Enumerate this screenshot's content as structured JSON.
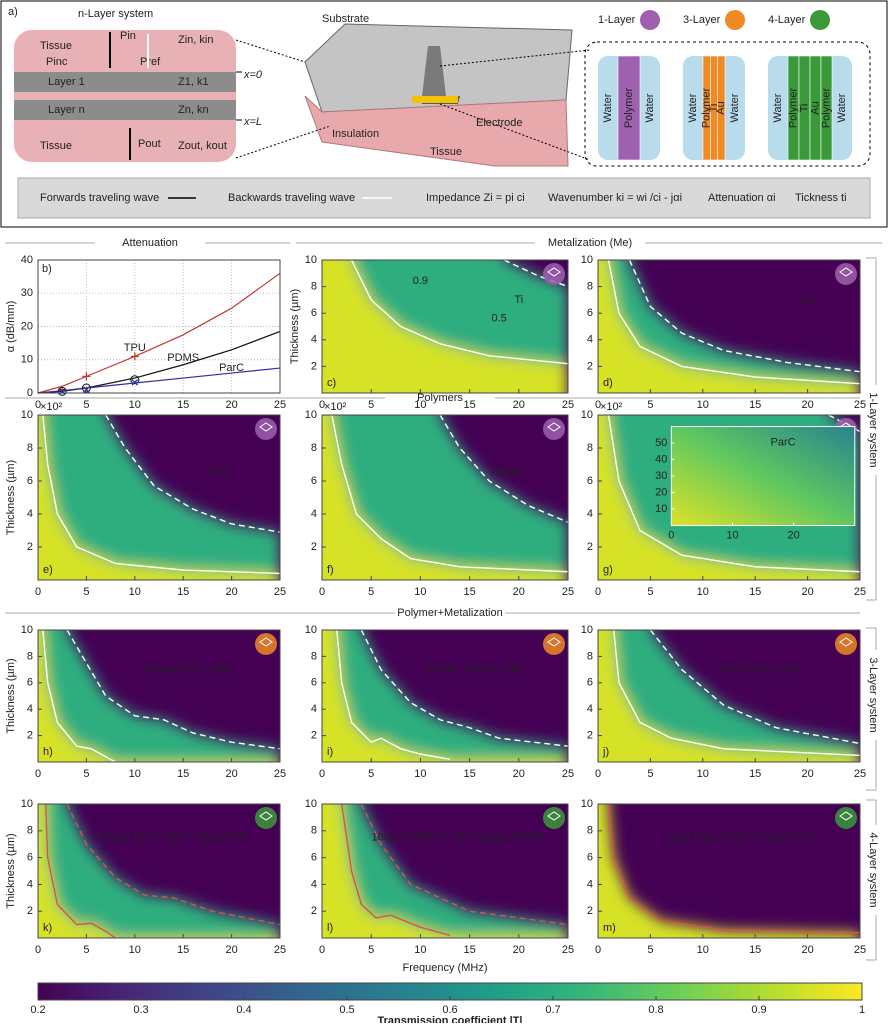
{
  "panel_a": {
    "label": "a)",
    "left": {
      "title": "n-Layer system",
      "tissue_top": "Tissue",
      "tissue_bottom": "Tissue",
      "layers": [
        "Layer 1",
        "Layer n"
      ],
      "symbols": [
        "Pin",
        "Pinc",
        "Pref",
        "Zin, kin",
        "Z1, k1",
        "Zn, kn",
        "Pout",
        "Zout, kout",
        "x=0",
        "x=L"
      ]
    },
    "center": {
      "labels": [
        "Substrate",
        "Insulation",
        "Electrode",
        "Tissue"
      ]
    },
    "right": {
      "headers": [
        "1-Layer",
        "3-Layer",
        "4-Layer"
      ],
      "colors": [
        "#a060b0",
        "#f08a24",
        "#3a9a3a"
      ],
      "stacks": [
        [
          "Water",
          "Polymer",
          "Water"
        ],
        [
          "Water",
          "Polymer",
          "Ti",
          "Au",
          "Water"
        ],
        [
          "Water",
          "Polymer",
          "Ti",
          "Au",
          "Polymer",
          "Water"
        ]
      ]
    },
    "legend": [
      "Forwards traveling wave",
      "Backwards traveling wave",
      "Impedance Zi = pi ci",
      "Wavenumber ki = wi /ci - jαi",
      "Attenuation αi",
      "Tickness ti"
    ]
  },
  "section_labels": [
    "Attenuation",
    "Metalization (Me)",
    "Polymers",
    "Polymer+Metalization",
    "1-Layer system",
    "3-Layer system",
    "4-Layer system"
  ],
  "chart_data": [
    {
      "type": "line",
      "label": "b)",
      "ylabel": "α (dB/mm)",
      "xlim": [
        0,
        25
      ],
      "ylim": [
        0,
        40
      ],
      "xticks": [
        0,
        5,
        10,
        15,
        20,
        25
      ],
      "yticks": [
        0,
        10,
        20,
        30,
        40
      ],
      "grid": true,
      "x": [
        0,
        2.5,
        5,
        10,
        15,
        20,
        25
      ],
      "series": [
        {
          "name": "TPU",
          "color": "#c0392b",
          "marker": "plus",
          "values": [
            0,
            2,
            5,
            11,
            17.5,
            25.5,
            36
          ],
          "measured": {
            "x": [
              2.5,
              5,
              10
            ],
            "values": [
              1,
              5,
              11
            ]
          }
        },
        {
          "name": "PDMS",
          "color": "#111111",
          "marker": "circle",
          "values": [
            0,
            0.5,
            1.5,
            4.5,
            8.5,
            13,
            18.5
          ],
          "measured": {
            "x": [
              2.5,
              5,
              10
            ],
            "values": [
              0.5,
              1.5,
              4
            ]
          }
        },
        {
          "name": "ParC",
          "color": "#2e2e9e",
          "marker": "cross",
          "values": [
            0,
            0.7,
            1.5,
            3,
            4.5,
            6,
            7.5
          ],
          "measured": {
            "x": [
              2.5,
              5,
              10
            ],
            "values": [
              0.5,
              1,
              3.2
            ]
          }
        }
      ]
    },
    {
      "type": "heatmap",
      "label": "c)",
      "ylabel": "Thickness (µm)",
      "text": "Ti",
      "annotations": [
        "0.9",
        "0.5"
      ],
      "icon_color": "#a060b0",
      "xlim": [
        0,
        25
      ],
      "ylim": [
        0,
        10
      ],
      "xticks": [
        0,
        5,
        10,
        15,
        20,
        25
      ],
      "yticks": [
        2,
        4,
        6,
        8,
        10
      ],
      "contours": [
        {
          "level": 0.5,
          "style": "dashed",
          "x": [
            18.5,
            22,
            25
          ],
          "y": [
            10,
            8.8,
            8
          ]
        },
        {
          "level": 0.9,
          "style": "solid",
          "x": [
            3,
            5,
            8,
            12,
            17,
            25
          ],
          "y": [
            10,
            7,
            5,
            3.7,
            2.8,
            2.2
          ]
        }
      ]
    },
    {
      "type": "heatmap",
      "label": "d)",
      "text": "Au",
      "icon_color": "#a060b0",
      "xlim": [
        0,
        25
      ],
      "ylim": [
        0,
        10
      ],
      "xticks": [
        0,
        5,
        10,
        15,
        20,
        25
      ],
      "yticks": [
        2,
        4,
        6,
        8,
        10
      ],
      "contours": [
        {
          "level": 0.5,
          "style": "dashed",
          "x": [
            3,
            5,
            8,
            12,
            18,
            25
          ],
          "y": [
            10,
            6.5,
            4.5,
            3.2,
            2.3,
            1.6
          ]
        },
        {
          "level": 0.9,
          "style": "solid",
          "x": [
            1,
            2,
            4,
            8,
            15,
            25
          ],
          "y": [
            10,
            6,
            3.5,
            2,
            1.2,
            0.7
          ]
        }
      ]
    },
    {
      "type": "heatmap",
      "label": "e)",
      "ylabel": "Thickness (µm)",
      "multiplier": "×10²",
      "text": "TPU",
      "icon_color": "#a060b0",
      "xlim": [
        0,
        25
      ],
      "ylim": [
        0,
        10
      ],
      "xticks": [
        0,
        5,
        10,
        15,
        20,
        25
      ],
      "yticks": [
        2,
        4,
        6,
        8,
        10
      ],
      "contours": [
        {
          "level": 0.5,
          "style": "dashed",
          "x": [
            7,
            9,
            12,
            16,
            20,
            25
          ],
          "y": [
            10,
            8,
            5.7,
            4.3,
            3.4,
            2.9
          ]
        },
        {
          "level": 0.9,
          "style": "solid",
          "x": [
            0.5,
            1,
            2,
            4,
            8,
            15,
            25
          ],
          "y": [
            10,
            7,
            4,
            2,
            1,
            0.6,
            0.4
          ]
        }
      ]
    },
    {
      "type": "heatmap",
      "label": "f)",
      "multiplier": "×10²",
      "text": "PDMS",
      "icon_color": "#a060b0",
      "xlim": [
        0,
        25
      ],
      "ylim": [
        0,
        10
      ],
      "xticks": [
        0,
        5,
        10,
        15,
        20,
        25
      ],
      "yticks": [
        2,
        4,
        6,
        8,
        10
      ],
      "contours": [
        {
          "level": 0.5,
          "style": "dashed",
          "x": [
            12,
            14,
            17,
            21,
            25
          ],
          "y": [
            10,
            8,
            6,
            4.5,
            3.5
          ]
        },
        {
          "level": 0.9,
          "style": "solid",
          "x": [
            1,
            2,
            3.5,
            6,
            9,
            14,
            25
          ],
          "y": [
            10,
            7,
            4,
            2.5,
            1.3,
            0.8,
            0.5
          ]
        }
      ]
    },
    {
      "type": "heatmap",
      "label": "g)",
      "multiplier": "×10²",
      "icon_color": "#a060b0",
      "xlim": [
        0,
        25
      ],
      "ylim": [
        0,
        10
      ],
      "xticks": [
        0,
        5,
        10,
        15,
        20,
        25
      ],
      "yticks": [
        2,
        4,
        6,
        8,
        10
      ],
      "contours": [
        {
          "level": 0.5,
          "style": "dashed",
          "x": [
            22,
            25
          ],
          "y": [
            10,
            9
          ]
        },
        {
          "level": 0.9,
          "style": "solid",
          "x": [
            1,
            2,
            4,
            8,
            15,
            25
          ],
          "y": [
            10,
            6,
            3,
            1.5,
            0.8,
            0.5
          ]
        }
      ],
      "inset": {
        "text": "ParC",
        "xlim": [
          0,
          30
        ],
        "ylim": [
          0,
          60
        ],
        "xticks": [
          0,
          10,
          20
        ],
        "yticks": [
          10,
          20,
          30,
          40,
          50
        ]
      }
    },
    {
      "type": "heatmap",
      "label": "h)",
      "ylabel": "Thickness (µm)",
      "text": "100µm TPU + Me",
      "icon_color": "#f08a24",
      "xlim": [
        0,
        25
      ],
      "ylim": [
        0,
        10
      ],
      "xticks": [
        0,
        5,
        10,
        15,
        20,
        25
      ],
      "yticks": [
        2,
        4,
        6,
        8,
        10
      ],
      "contours": [
        {
          "level": 0.5,
          "style": "dashed",
          "x": [
            3,
            5,
            7,
            10,
            13,
            16,
            20,
            25
          ],
          "y": [
            10,
            7.5,
            5,
            3.5,
            3.2,
            2.2,
            1.5,
            1
          ]
        },
        {
          "level": 0.9,
          "style": "solid",
          "x": [
            0.5,
            1,
            2,
            4,
            5.5,
            7,
            8
          ],
          "y": [
            10,
            6,
            3,
            1.2,
            1,
            0.4,
            0
          ]
        }
      ]
    },
    {
      "type": "heatmap",
      "label": "i)",
      "text": "100µm PDMS + Me",
      "icon_color": "#f08a24",
      "xlim": [
        0,
        25
      ],
      "ylim": [
        0,
        10
      ],
      "xticks": [
        0,
        5,
        10,
        15,
        20,
        25
      ],
      "yticks": [
        2,
        4,
        6,
        8,
        10
      ],
      "contours": [
        {
          "level": 0.5,
          "style": "dashed",
          "x": [
            4,
            6,
            9,
            12,
            15,
            18,
            25
          ],
          "y": [
            10,
            7,
            4.5,
            3.2,
            2.6,
            1.8,
            1.2
          ]
        },
        {
          "level": 0.9,
          "style": "solid",
          "x": [
            1.5,
            2,
            3,
            5,
            6,
            8,
            10,
            13
          ],
          "y": [
            10,
            6,
            3,
            1.5,
            1.8,
            1,
            0.6,
            0.2
          ]
        }
      ]
    },
    {
      "type": "heatmap",
      "label": "j)",
      "text": "5µm ParC + Me",
      "icon_color": "#f08a24",
      "xlim": [
        0,
        25
      ],
      "ylim": [
        0,
        10
      ],
      "xticks": [
        0,
        5,
        10,
        15,
        20,
        25
      ],
      "yticks": [
        2,
        4,
        6,
        8,
        10
      ],
      "contours": [
        {
          "level": 0.5,
          "style": "dashed",
          "x": [
            5,
            8,
            12,
            17,
            25
          ],
          "y": [
            10,
            7,
            4.3,
            2.6,
            1.4
          ]
        },
        {
          "level": 0.9,
          "style": "solid",
          "x": [
            1.5,
            2,
            4,
            7,
            12,
            25
          ],
          "y": [
            10,
            6,
            3,
            1.8,
            1,
            0.5
          ]
        }
      ]
    },
    {
      "type": "heatmap",
      "label": "k)",
      "ylabel": "Thickness (µm)",
      "text": "100µm TPU + Me + 25µm TPU",
      "icon_color": "#3a9a3a",
      "xlim": [
        0,
        25
      ],
      "ylim": [
        0,
        10
      ],
      "xticks": [
        0,
        5,
        10,
        15,
        20,
        25
      ],
      "yticks": [
        2,
        4,
        6,
        8,
        10
      ],
      "contours": [
        {
          "level": 0.5,
          "style": "dashed",
          "color": "#d9534f",
          "x": [
            3,
            5,
            8,
            11,
            14,
            18,
            25
          ],
          "y": [
            10,
            7,
            4.5,
            3.2,
            3,
            2,
            1
          ]
        },
        {
          "level": 0.9,
          "style": "solid",
          "color": "#d9534f",
          "x": [
            0.8,
            1,
            2,
            4,
            5.5,
            7,
            8
          ],
          "y": [
            10,
            6,
            2.5,
            1,
            1.1,
            0.5,
            0
          ]
        }
      ]
    },
    {
      "type": "heatmap",
      "label": "l)",
      "xlabel": "Frequency (MHz)",
      "text": "100µm PDMS + Me + 25µm PDMS",
      "icon_color": "#3a9a3a",
      "xlim": [
        0,
        25
      ],
      "ylim": [
        0,
        10
      ],
      "xticks": [
        0,
        5,
        10,
        15,
        20,
        25
      ],
      "yticks": [
        2,
        4,
        6,
        8,
        10
      ],
      "contours": [
        {
          "level": 0.5,
          "style": "dashed",
          "color": "#d9534f",
          "x": [
            4,
            6,
            9,
            12,
            15,
            20,
            25
          ],
          "y": [
            10,
            7,
            4,
            3,
            2,
            1.5,
            1
          ]
        },
        {
          "level": 0.9,
          "style": "solid",
          "color": "#d9534f",
          "x": [
            2,
            3,
            4,
            5.5,
            7,
            10,
            13
          ],
          "y": [
            10,
            5,
            2.5,
            1.5,
            1.7,
            0.8,
            0.2
          ]
        }
      ]
    },
    {
      "type": "heatmap",
      "label": "m)",
      "text": "5µm Parc + Me + 1.5µm ParC",
      "icon_color": "#3a9a3a",
      "xlim": [
        0,
        25
      ],
      "ylim": [
        0,
        10
      ],
      "xticks": [
        0,
        5,
        10,
        15,
        20,
        25
      ],
      "yticks": [
        2,
        4,
        6,
        8,
        10
      ],
      "contours": [
        {
          "level": 0.9,
          "style": "solid",
          "color": "#d9534f",
          "x": [
            1,
            1.5,
            3,
            6,
            12,
            25
          ],
          "y": [
            10,
            6,
            3,
            1.3,
            0.6,
            0.4
          ]
        }
      ]
    },
    {
      "type": "colorbar",
      "colormap": "viridis",
      "xlabel": "Transmission coefficient |T|",
      "xlim": [
        0.2,
        1
      ],
      "xticks": [
        0.2,
        0.3,
        0.4,
        0.5,
        0.6,
        0.7,
        0.8,
        0.9,
        1
      ]
    }
  ]
}
